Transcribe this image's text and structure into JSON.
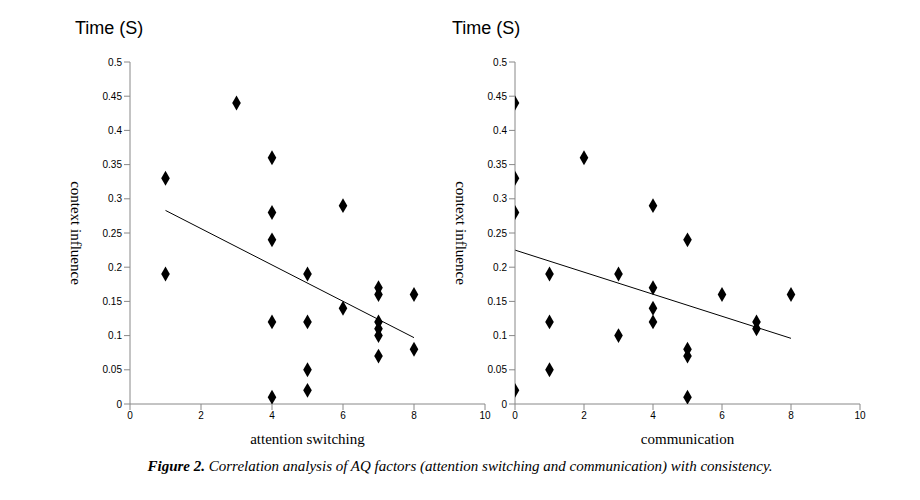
{
  "chart_data": [
    {
      "type": "scatter",
      "title": "Time (S)",
      "x_label": "attention switching",
      "y_label": "context influence",
      "x": [
        1,
        1,
        3,
        4,
        4,
        4,
        4,
        4,
        5,
        5,
        5,
        5,
        6,
        6,
        7,
        7,
        7,
        7,
        7,
        7,
        8,
        8
      ],
      "values": [
        0.33,
        0.19,
        0.44,
        0.36,
        0.28,
        0.24,
        0.12,
        0.01,
        0.19,
        0.12,
        0.05,
        0.02,
        0.29,
        0.14,
        0.17,
        0.16,
        0.12,
        0.11,
        0.1,
        0.07,
        0.16,
        0.08
      ],
      "trendline": {
        "x": [
          1,
          8
        ],
        "y": [
          0.283,
          0.097
        ]
      },
      "color": "#000000",
      "marker": "diamond",
      "xlim": [
        0,
        10
      ],
      "xticks": [
        0,
        2,
        4,
        6,
        8,
        10
      ],
      "ylim": [
        0,
        0.5
      ],
      "yticks": [
        0,
        0.05,
        0.1,
        0.15,
        0.2,
        0.25,
        0.3,
        0.35,
        0.4,
        0.45,
        0.5
      ],
      "grid": false
    },
    {
      "type": "scatter",
      "title": "Time (S)",
      "x_label": "communication",
      "y_label": "context influence",
      "x": [
        0,
        0,
        0,
        0,
        1,
        1,
        1,
        2,
        3,
        3,
        4,
        4,
        4,
        4,
        5,
        5,
        5,
        5,
        6,
        7,
        7,
        8
      ],
      "values": [
        0.44,
        0.33,
        0.28,
        0.02,
        0.19,
        0.12,
        0.05,
        0.36,
        0.19,
        0.1,
        0.29,
        0.17,
        0.14,
        0.12,
        0.24,
        0.08,
        0.07,
        0.01,
        0.16,
        0.12,
        0.11,
        0.16
      ],
      "trendline": {
        "x": [
          0,
          8
        ],
        "y": [
          0.225,
          0.096
        ]
      },
      "color": "#000000",
      "marker": "diamond",
      "xlim": [
        0,
        10
      ],
      "xticks": [
        0,
        2,
        4,
        6,
        8,
        10
      ],
      "ylim": [
        0,
        0.5
      ],
      "yticks": [
        0,
        0.05,
        0.1,
        0.15,
        0.2,
        0.25,
        0.3,
        0.35,
        0.4,
        0.45,
        0.5
      ],
      "grid": false
    }
  ],
  "caption": "Figure 2. Correlation analysis of AQ factors (attention switching and communication) with consistency."
}
